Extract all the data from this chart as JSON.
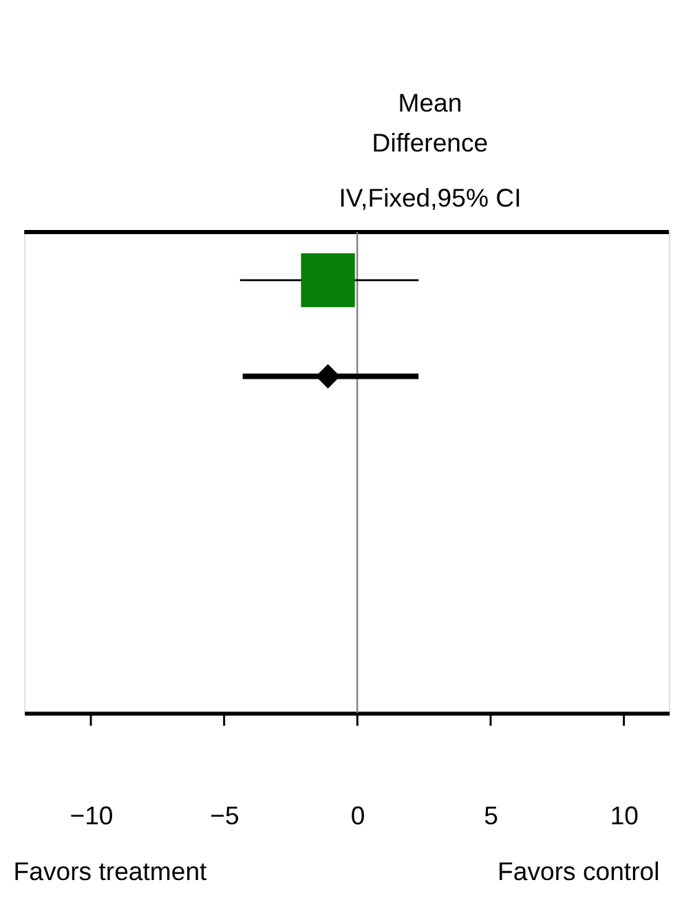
{
  "chart_data": {
    "type": "scatter",
    "orientation": "horizontal",
    "title": "Mean\nDifference",
    "subtitle": "IV,Fixed,95% CI",
    "categories": [
      null,
      null,
      null,
      null,
      null
    ],
    "series": [
      {
        "marker": "square",
        "color": "#078007",
        "values": [
          -1.1,
          null,
          null,
          null,
          null
        ],
        "errors": [
          [
            -4.4,
            2.3
          ],
          null,
          null,
          null,
          null
        ]
      },
      {
        "marker": "diamond",
        "color": "#000000",
        "values": [
          null,
          -1.1,
          null,
          null,
          null
        ],
        "errors": [
          null,
          [
            -4.3,
            2.3
          ],
          null,
          null,
          null
        ]
      }
    ],
    "xlim": [
      -12.5,
      11.7
    ],
    "xticks": [
      -10,
      -5,
      0,
      5,
      10
    ],
    "ref_lines": [
      {
        "axis": "x",
        "value": 0,
        "color": "#808080"
      }
    ],
    "annotations": [
      "Favors treatment",
      "Favors control"
    ],
    "grid": false
  }
}
